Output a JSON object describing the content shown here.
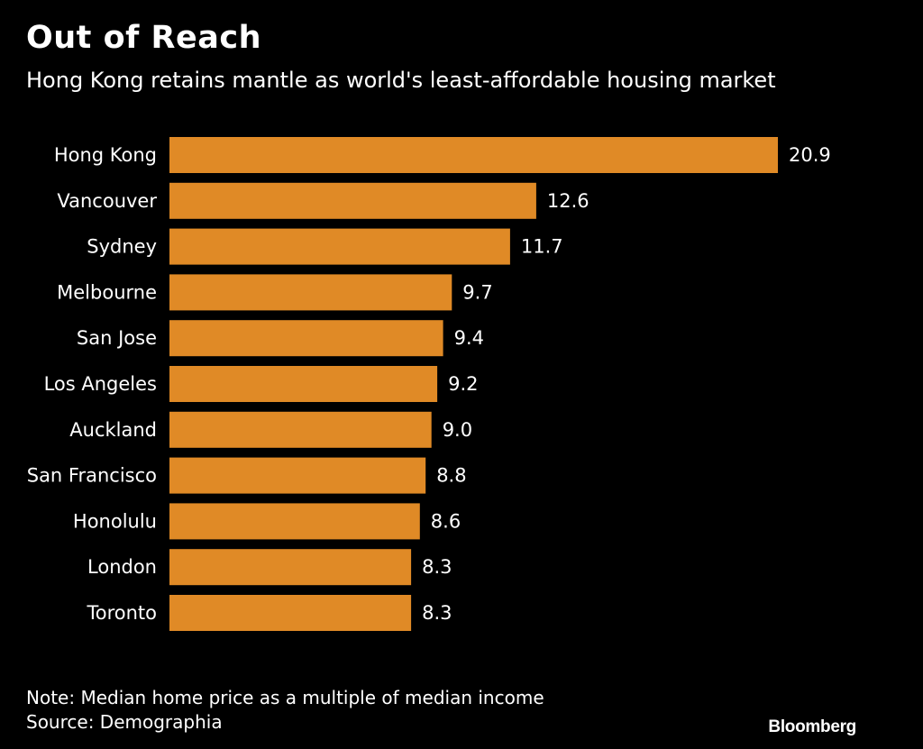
{
  "colors": {
    "background": "#000000",
    "bar": "#e08a26",
    "text": "#ffffff"
  },
  "header": {
    "title": "Out of Reach",
    "subtitle": "Hong Kong retains mantle as world's least-affordable housing market"
  },
  "footer": {
    "note": "Note: Median home price as a multiple of median income",
    "source": "Source: Demographia",
    "brand": "Bloomberg"
  },
  "chart_data": {
    "type": "bar",
    "orientation": "horizontal",
    "title": "Out of Reach",
    "subtitle": "Hong Kong retains mantle as world's least-affordable housing market",
    "xlabel": "",
    "ylabel": "",
    "categories": [
      "Hong Kong",
      "Vancouver",
      "Sydney",
      "Melbourne",
      "San Jose",
      "Los Angeles",
      "Auckland",
      "San Francisco",
      "Honolulu",
      "London",
      "Toronto"
    ],
    "values": [
      20.9,
      12.6,
      11.7,
      9.7,
      9.4,
      9.2,
      9.0,
      8.8,
      8.6,
      8.3,
      8.3
    ],
    "value_labels": [
      "20.9",
      "12.6",
      "11.7",
      "9.7",
      "9.4",
      "9.2",
      "9.0",
      "8.8",
      "8.6",
      "8.3",
      "8.3"
    ],
    "xlim": [
      0,
      20.9
    ],
    "grid": false,
    "legend": "none",
    "data_labels": "outside-end"
  }
}
